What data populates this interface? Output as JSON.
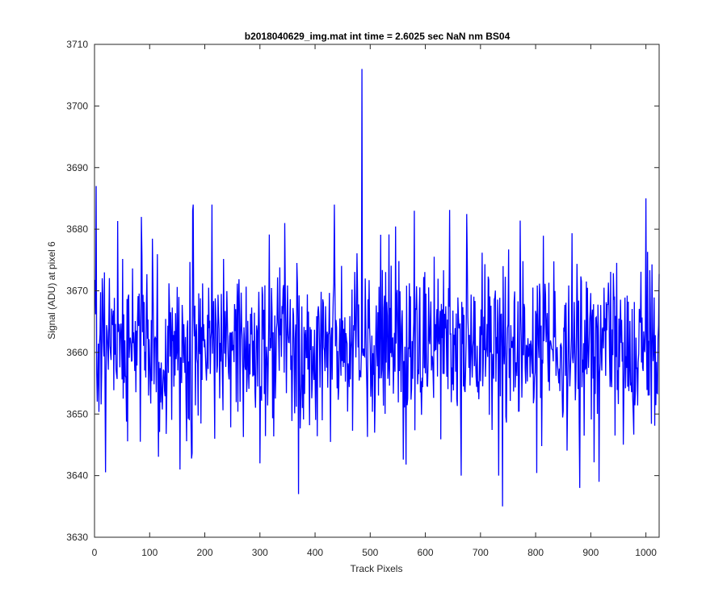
{
  "chart_data": {
    "type": "line",
    "title": "b2018040629_img.mat int time = 2.6025 sec  NaN nm BS04",
    "xlabel": "Track Pixels",
    "ylabel": "Signal (ADU) at pixel 6",
    "xlim": [
      0,
      1024
    ],
    "ylim": [
      3630,
      3710
    ],
    "xticks": [
      0,
      100,
      200,
      300,
      400,
      500,
      600,
      700,
      800,
      900,
      1000
    ],
    "yticks": [
      3630,
      3640,
      3650,
      3660,
      3670,
      3680,
      3690,
      3700,
      3710
    ],
    "grid": false,
    "line_color": "#0000ff",
    "series": [
      {
        "x_start": 1,
        "x_step": 1,
        "y_mean": 3661,
        "y_std": 7,
        "y_min": 3635,
        "y_max": 3706,
        "notable_points": [
          {
            "x": 3,
            "y": 3687
          },
          {
            "x": 85,
            "y": 3682
          },
          {
            "x": 155,
            "y": 3641
          },
          {
            "x": 178,
            "y": 3683
          },
          {
            "x": 213,
            "y": 3684
          },
          {
            "x": 300,
            "y": 3642
          },
          {
            "x": 345,
            "y": 3681
          },
          {
            "x": 370,
            "y": 3637
          },
          {
            "x": 435,
            "y": 3684
          },
          {
            "x": 485,
            "y": 3706
          },
          {
            "x": 580,
            "y": 3683
          },
          {
            "x": 740,
            "y": 3635
          },
          {
            "x": 880,
            "y": 3638
          },
          {
            "x": 915,
            "y": 3639
          },
          {
            "x": 1000,
            "y": 3685
          }
        ]
      }
    ]
  }
}
